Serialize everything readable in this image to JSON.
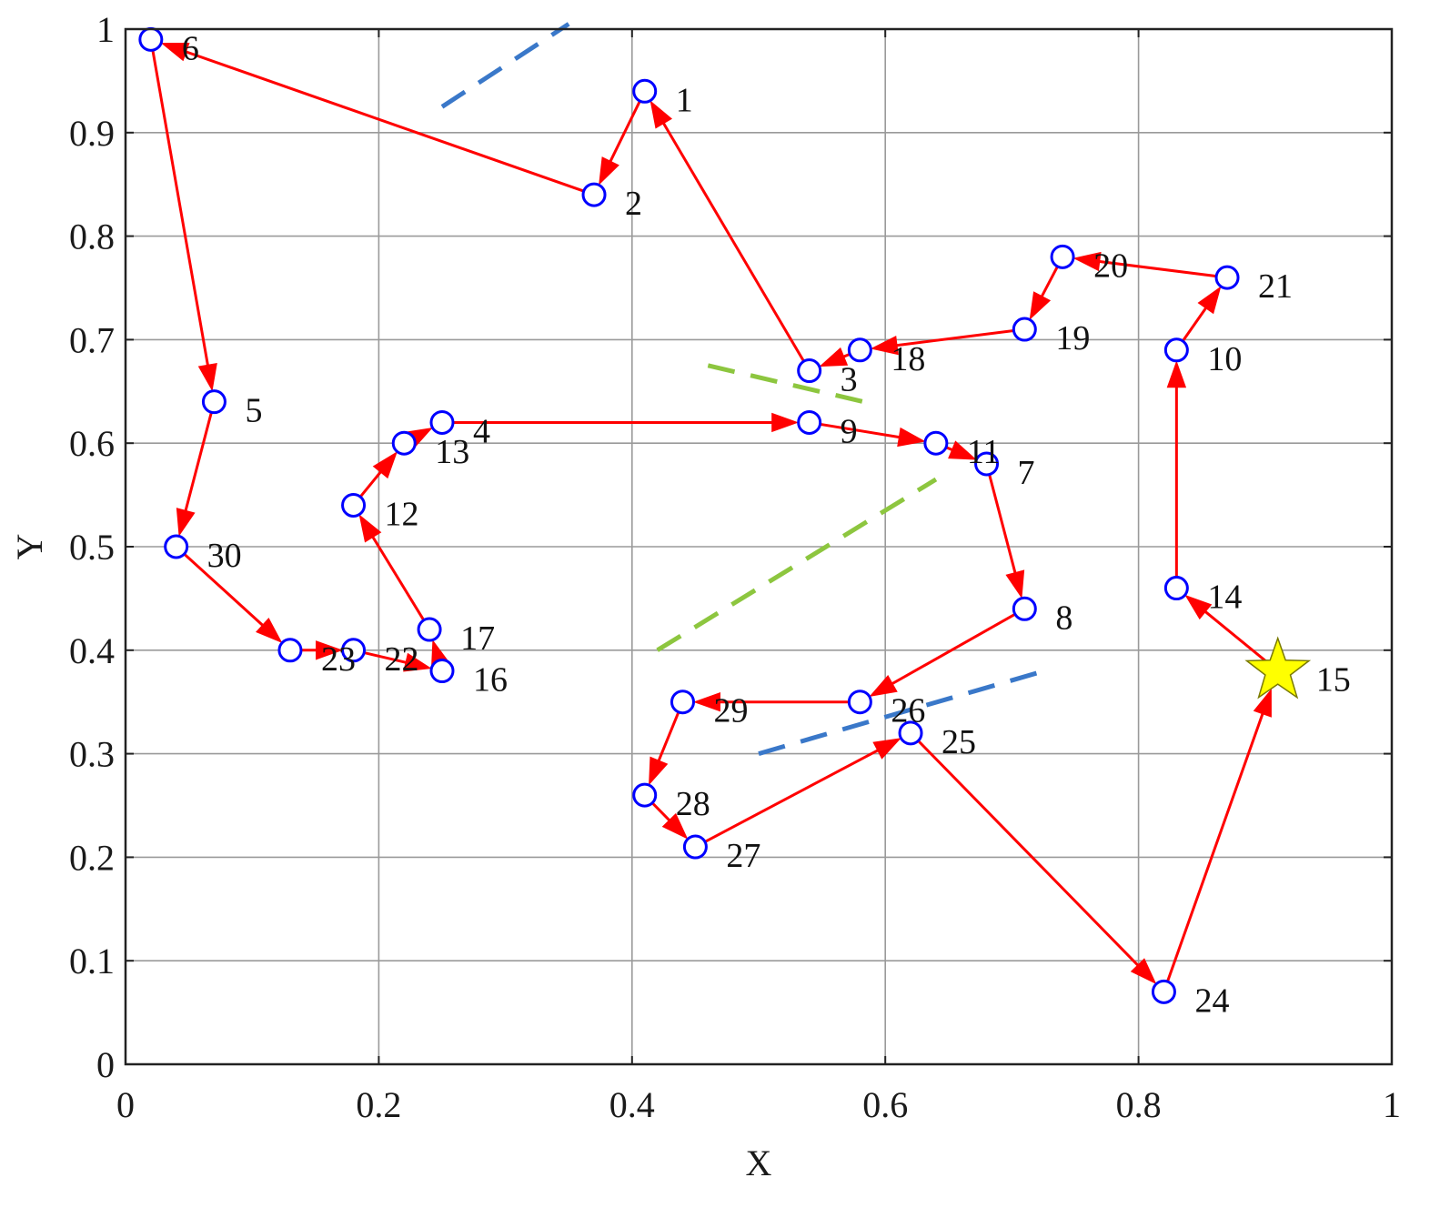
{
  "chart_data": {
    "type": "scatter",
    "title": "",
    "xlabel": "X",
    "ylabel": "Y",
    "xlim": [
      0,
      1
    ],
    "ylim": [
      0,
      1
    ],
    "grid": true,
    "xticks": [
      "0",
      "0.2",
      "0.4",
      "0.6",
      "0.8",
      "1"
    ],
    "yticks": [
      "0",
      "0.1",
      "0.2",
      "0.3",
      "0.4",
      "0.5",
      "0.6",
      "0.7",
      "0.8",
      "0.9",
      "1"
    ],
    "nodes": [
      {
        "id": "1",
        "x": 0.41,
        "y": 0.94
      },
      {
        "id": "2",
        "x": 0.37,
        "y": 0.84
      },
      {
        "id": "3",
        "x": 0.54,
        "y": 0.67
      },
      {
        "id": "4",
        "x": 0.25,
        "y": 0.62
      },
      {
        "id": "5",
        "x": 0.07,
        "y": 0.64
      },
      {
        "id": "6",
        "x": 0.02,
        "y": 0.99
      },
      {
        "id": "7",
        "x": 0.68,
        "y": 0.58
      },
      {
        "id": "8",
        "x": 0.71,
        "y": 0.44
      },
      {
        "id": "9",
        "x": 0.54,
        "y": 0.62
      },
      {
        "id": "10",
        "x": 0.83,
        "y": 0.69
      },
      {
        "id": "11",
        "x": 0.64,
        "y": 0.6
      },
      {
        "id": "12",
        "x": 0.18,
        "y": 0.54
      },
      {
        "id": "13",
        "x": 0.22,
        "y": 0.6
      },
      {
        "id": "14",
        "x": 0.83,
        "y": 0.46
      },
      {
        "id": "15",
        "x": 0.91,
        "y": 0.38,
        "start": true
      },
      {
        "id": "16",
        "x": 0.25,
        "y": 0.38
      },
      {
        "id": "17",
        "x": 0.24,
        "y": 0.42
      },
      {
        "id": "18",
        "x": 0.58,
        "y": 0.69
      },
      {
        "id": "19",
        "x": 0.71,
        "y": 0.71
      },
      {
        "id": "20",
        "x": 0.74,
        "y": 0.78
      },
      {
        "id": "21",
        "x": 0.87,
        "y": 0.76
      },
      {
        "id": "22",
        "x": 0.18,
        "y": 0.4
      },
      {
        "id": "23",
        "x": 0.13,
        "y": 0.4
      },
      {
        "id": "24",
        "x": 0.82,
        "y": 0.07
      },
      {
        "id": "25",
        "x": 0.62,
        "y": 0.32
      },
      {
        "id": "26",
        "x": 0.58,
        "y": 0.35
      },
      {
        "id": "27",
        "x": 0.45,
        "y": 0.21
      },
      {
        "id": "28",
        "x": 0.41,
        "y": 0.26
      },
      {
        "id": "29",
        "x": 0.44,
        "y": 0.35
      },
      {
        "id": "30",
        "x": 0.04,
        "y": 0.5
      }
    ],
    "route": [
      "15",
      "14",
      "10",
      "21",
      "20",
      "19",
      "18",
      "3",
      "1",
      "2",
      "6",
      "5",
      "30",
      "23",
      "22",
      "16",
      "17",
      "12",
      "13",
      "4",
      "9",
      "11",
      "7",
      "8",
      "26",
      "29",
      "28",
      "27",
      "25",
      "24",
      "15"
    ],
    "barriers": [
      {
        "color": "#3a78c9",
        "points": [
          [
            0.25,
            0.925
          ],
          [
            0.35,
            1.005
          ]
        ]
      },
      {
        "color": "#3a78c9",
        "points": [
          [
            0.5,
            0.3
          ],
          [
            0.72,
            0.378
          ]
        ]
      },
      {
        "color": "#8dc63f",
        "points": [
          [
            0.46,
            0.675
          ],
          [
            0.59,
            0.638
          ]
        ]
      },
      {
        "color": "#8dc63f",
        "points": [
          [
            0.42,
            0.4
          ],
          [
            0.64,
            0.565
          ]
        ]
      }
    ],
    "colors": {
      "route": "#ff0000",
      "node_stroke": "#0000ff",
      "star_fill": "#ffff00",
      "star_stroke": "#7a7a00",
      "grid": "#9a9a9a",
      "axis": "#222222"
    }
  }
}
